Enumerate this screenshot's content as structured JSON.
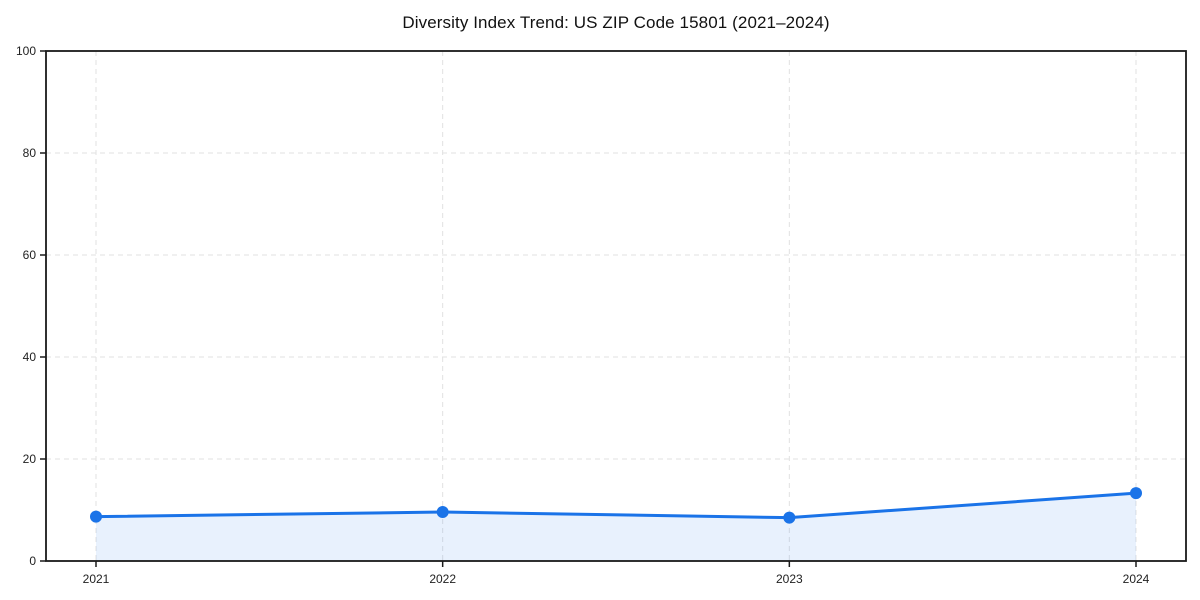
{
  "chart_data": {
    "type": "line",
    "title": "Diversity Index Trend: US ZIP Code 15801 (2021–2024)",
    "categories": [
      "2021",
      "2022",
      "2023",
      "2024"
    ],
    "series": [
      {
        "name": "Diversity Index",
        "values": [
          8.7,
          9.6,
          8.5,
          13.3
        ]
      }
    ],
    "xlabel": "",
    "ylabel": "",
    "ylim": [
      0,
      100
    ],
    "yticks": [
      0,
      20,
      40,
      60,
      80,
      100
    ],
    "grid": "dashed-both-axes",
    "legend": "none",
    "area_under_line": true,
    "marker": "circle",
    "style": {
      "line_color": "#1a73e8",
      "marker_color": "#1a73e8",
      "area_fill": "rgba(26,115,232,0.10)",
      "grid_color": "#e2e2e2",
      "axis_color": "#1a1a1a",
      "tick_color": "#1a1a1a",
      "tick_label_color": "#222222",
      "title_color": "#111111",
      "background": "#ffffff"
    }
  }
}
